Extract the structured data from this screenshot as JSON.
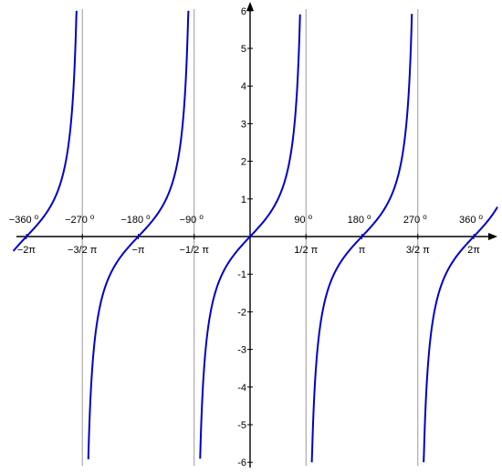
{
  "chart_data": {
    "type": "line",
    "title": "",
    "function": "tan(x)",
    "xlabel": "",
    "ylabel": "",
    "xlim": [
      -6.75,
      7.0
    ],
    "ylim": [
      -6,
      6
    ],
    "grid": false,
    "curve_color": "#0000cc",
    "asymptote_color": "#999999",
    "axis_color": "#000000",
    "asymptotes": [
      -4.712389,
      -1.570796,
      1.570796,
      4.712389
    ],
    "x_ticks": [
      {
        "value": -6.283185,
        "rad_label": "−2π",
        "deg_label": "−360",
        "deg_sup": "o"
      },
      {
        "value": -4.712389,
        "rad_label": "−3/2 π",
        "deg_label": "−270",
        "deg_sup": "o"
      },
      {
        "value": -3.141593,
        "rad_label": "−π",
        "deg_label": "−180",
        "deg_sup": "o"
      },
      {
        "value": -1.570796,
        "rad_label": "−1/2 π",
        "deg_label": "−90",
        "deg_sup": "o"
      },
      {
        "value": 1.570796,
        "rad_label": "1/2 π",
        "deg_label": "90",
        "deg_sup": "o"
      },
      {
        "value": 3.141593,
        "rad_label": "π",
        "deg_label": "180",
        "deg_sup": "o"
      },
      {
        "value": 4.712389,
        "rad_label": "3/2 π",
        "deg_label": "270",
        "deg_sup": "o"
      },
      {
        "value": 6.283185,
        "rad_label": "2π",
        "deg_label": "360",
        "deg_sup": "o"
      }
    ],
    "y_ticks": [
      {
        "value": 6,
        "label": "6"
      },
      {
        "value": 5,
        "label": "5"
      },
      {
        "value": 4,
        "label": "4"
      },
      {
        "value": 3,
        "label": "3"
      },
      {
        "value": 2,
        "label": "2"
      },
      {
        "value": 1,
        "label": "1"
      },
      {
        "value": -1,
        "label": "-1"
      },
      {
        "value": -2,
        "label": "-2"
      },
      {
        "value": -3,
        "label": "-3"
      },
      {
        "value": -4,
        "label": "-4"
      },
      {
        "value": -5,
        "label": "-5"
      },
      {
        "value": -6,
        "label": "-6"
      }
    ],
    "branches": [
      {
        "name": "",
        "x_start": -6.65,
        "x_end": -4.875
      },
      {
        "name": "",
        "x_start": -4.545,
        "x_end": -1.733
      },
      {
        "name": "",
        "x_start": -1.403,
        "x_end": 1.403
      },
      {
        "name": "",
        "x_start": 1.733,
        "x_end": 4.545
      },
      {
        "name": "",
        "x_start": 4.875,
        "x_end": 6.95
      }
    ]
  }
}
